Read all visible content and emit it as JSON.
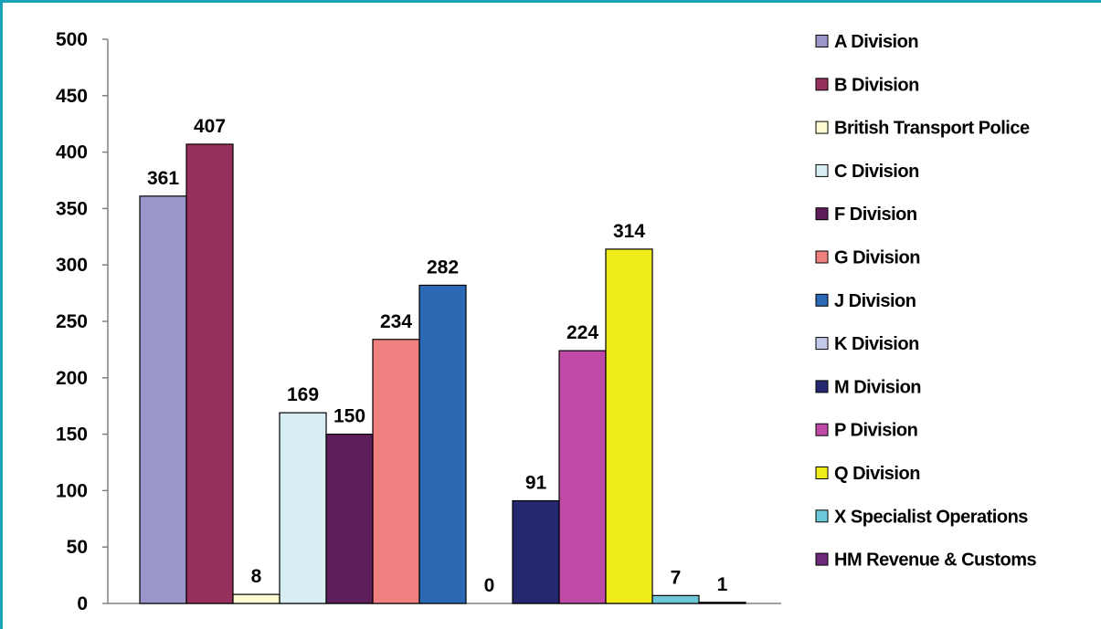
{
  "chart_data": {
    "type": "bar",
    "title": "",
    "xlabel": "",
    "ylabel": "",
    "ylim": [
      0,
      500
    ],
    "yticks": [
      "0",
      "50",
      "100",
      "150",
      "200",
      "250",
      "300",
      "350",
      "400",
      "450",
      "500"
    ],
    "grid": false,
    "legend_position": "right",
    "series": [
      {
        "name": "A Division",
        "value": 361,
        "color": "#9b96c9"
      },
      {
        "name": "B Division",
        "value": 407,
        "color": "#96305c"
      },
      {
        "name": "British Transport Police",
        "value": 8,
        "color": "#fdfbd0"
      },
      {
        "name": "C Division",
        "value": 169,
        "color": "#d7eef4"
      },
      {
        "name": "F Division",
        "value": 150,
        "color": "#5c1f5c"
      },
      {
        "name": "G Division",
        "value": 234,
        "color": "#f08080"
      },
      {
        "name": "J Division",
        "value": 282,
        "color": "#2b69b4"
      },
      {
        "name": "K Division",
        "value": 0,
        "color": "#c5c9ea"
      },
      {
        "name": "M Division",
        "value": 91,
        "color": "#25286e"
      },
      {
        "name": "P Division",
        "value": 224,
        "color": "#c04ba6"
      },
      {
        "name": "Q Division",
        "value": 314,
        "color": "#f0ec19"
      },
      {
        "name": "X Specialist Operations",
        "value": 7,
        "color": "#6cc7d8"
      },
      {
        "name": "HM Revenue & Customs",
        "value": 1,
        "color": "#6b2a7a"
      }
    ]
  }
}
